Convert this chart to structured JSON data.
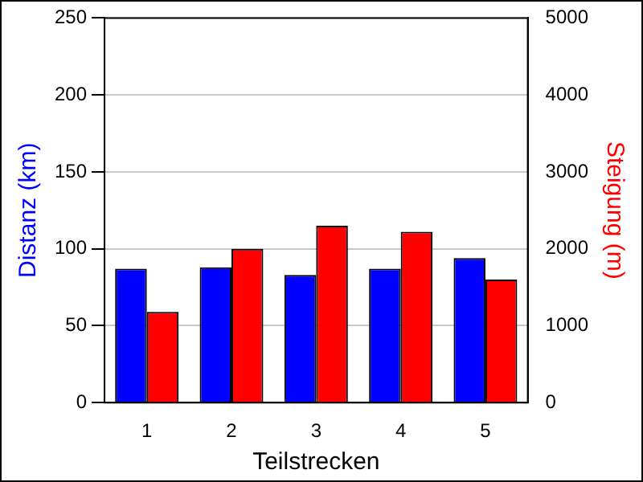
{
  "chart_data": {
    "type": "bar",
    "xlabel": "Teilstrecken",
    "ylabel": "Distanz (km)",
    "y2label": "Steigung (m)",
    "categories": [
      "1",
      "2",
      "3",
      "4",
      "5"
    ],
    "series": [
      {
        "color": "#0000ff",
        "values": [
          87,
          88,
          83,
          87,
          94
        ]
      },
      {
        "color": "#ff0000",
        "axis": "y2",
        "values": [
          1180,
          2000,
          2300,
          2220,
          1600
        ]
      }
    ],
    "ylim": [
      0,
      250
    ],
    "yticks": [
      0,
      50,
      100,
      150,
      200,
      250
    ],
    "y2lim": [
      0,
      5000
    ],
    "y2ticks": [
      0,
      1000,
      2000,
      3000,
      4000,
      5000
    ],
    "grid": "y",
    "legend": false
  }
}
